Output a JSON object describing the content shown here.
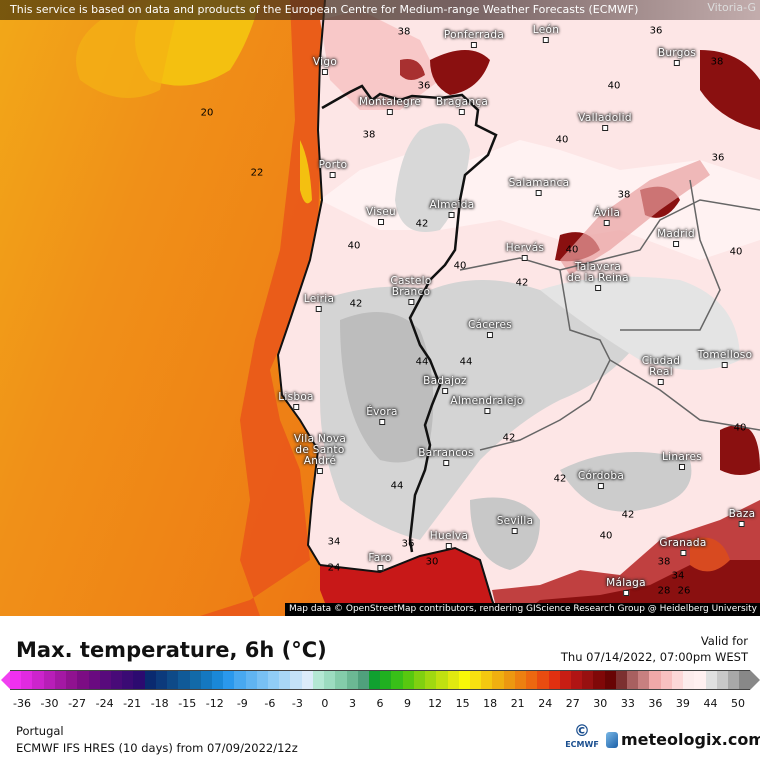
{
  "banner": "This service is based on data and products of the European Centre for Medium-range Weather Forecasts (ECMWF)",
  "corner_label": "Vitoria-G",
  "attribution": "Map data © OpenStreetMap contributors, rendering GIScience Research Group @ Heidelberg University",
  "cities": [
    "Vigo",
    "Ponferrada",
    "León",
    "Burgos",
    "Montalegre",
    "Bragança",
    "Valladolid",
    "Porto",
    "Salamanca",
    "Viseu",
    "Almeida",
    "Ávila",
    "Madrid",
    "Hervás",
    "Talavera\nde la Reina",
    "Castelo\nBranco",
    "Leiria",
    "Cáceres",
    "Ciudad\nReal",
    "Tomelloso",
    "Badajoz",
    "Almendralejo",
    "Lisboa",
    "Évora",
    "Vila Nova\nde Santo\nAndré",
    "Barrancos",
    "Linares",
    "Córdoba",
    "Sevilla",
    "Baza",
    "Huelva",
    "Granada",
    "Faro",
    "Málaga"
  ],
  "contour_labels": [
    "38",
    "36",
    "20",
    "22",
    "36",
    "40",
    "38",
    "40",
    "42",
    "40",
    "38",
    "36",
    "38",
    "40",
    "42",
    "42",
    "40",
    "44",
    "44",
    "42",
    "44",
    "42",
    "42",
    "40",
    "40",
    "34",
    "36",
    "24",
    "30",
    "38",
    "34",
    "28",
    "26",
    "40"
  ],
  "legend": {
    "title": "Max. temperature, 6h (°C)",
    "valid_label": "Valid for",
    "valid_time": "Thu 07/14/2022, 07:00pm WEST",
    "ticks": [
      "-36",
      "-30",
      "-27",
      "-24",
      "-21",
      "-18",
      "-15",
      "-12",
      "-9",
      "-6",
      "-3",
      "0",
      "3",
      "6",
      "9",
      "12",
      "15",
      "18",
      "21",
      "24",
      "27",
      "30",
      "33",
      "36",
      "39",
      "44",
      "50"
    ],
    "colors": [
      "#f030f0",
      "#e02ae0",
      "#cc24cc",
      "#b81eb8",
      "#a418a4",
      "#901290",
      "#7c0c84",
      "#6a0a80",
      "#580a7c",
      "#480a78",
      "#3a0a74",
      "#2c0a70",
      "#0a2a70",
      "#0c3a7c",
      "#0e4a88",
      "#105a98",
      "#126aa8",
      "#1478c0",
      "#1a88d8",
      "#2a98ec",
      "#48a8f0",
      "#60b4f2",
      "#78c0f4",
      "#90ccf6",
      "#a8d6f6",
      "#c4e2f8",
      "#dcecfa",
      "#b4e8d4",
      "#9cdcc0",
      "#84ccaa",
      "#6cb894",
      "#50a07c",
      "#10a030",
      "#20b020",
      "#38c018",
      "#58c810",
      "#80d010",
      "#a0d810",
      "#c0e010",
      "#e0e810",
      "#f8f808",
      "#f8e010",
      "#f4c810",
      "#f0b010",
      "#ec9810",
      "#ec8010",
      "#ec6810",
      "#e84c10",
      "#e03010",
      "#c81e14",
      "#b01414",
      "#981010",
      "#800808",
      "#680404",
      "#7c3030",
      "#a86060",
      "#c88080",
      "#f0a8a8",
      "#f8c0c0",
      "#fcd8d8",
      "#fcecec",
      "#fff0f0",
      "#e0e0e0",
      "#c8c8c8",
      "#a8a8a8",
      "#888888"
    ]
  },
  "footer": {
    "region": "Portugal",
    "model": "ECMWF IFS HRES (10 days) from  07/09/2022/12z",
    "ecmwf_logo": "ECMWF",
    "brand": "meteologix.com"
  }
}
